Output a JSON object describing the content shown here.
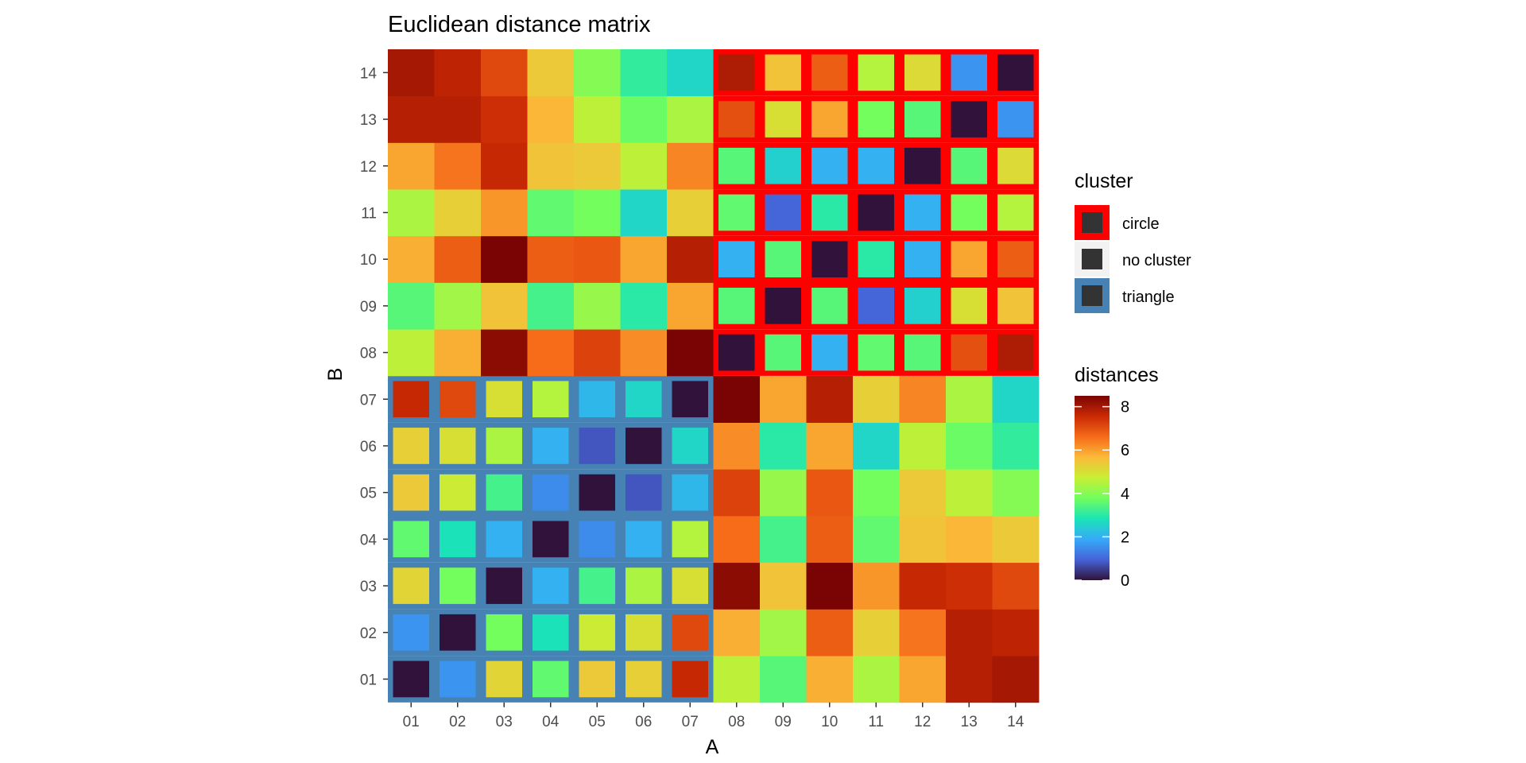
{
  "chart_data": {
    "type": "heatmap",
    "title": "Euclidean distance matrix",
    "xlabel": "A",
    "ylabel": "B",
    "x": [
      "01",
      "02",
      "03",
      "04",
      "05",
      "06",
      "07",
      "08",
      "09",
      "10",
      "11",
      "12",
      "13",
      "14"
    ],
    "y": [
      "01",
      "02",
      "03",
      "04",
      "05",
      "06",
      "07",
      "08",
      "09",
      "10",
      "11",
      "12",
      "13",
      "14"
    ],
    "values_note_rows": "rows ordered by y (01 at bottom), columns ordered by x",
    "values": [
      [
        0.0,
        1.6,
        5.2,
        3.6,
        5.4,
        5.3,
        7.6,
        4.6,
        3.5,
        5.8,
        4.4,
        5.9,
        7.8,
        8.0
      ],
      [
        1.6,
        0.0,
        3.8,
        2.8,
        4.8,
        5.0,
        7.1,
        5.8,
        4.3,
        6.8,
        5.3,
        6.5,
        7.8,
        7.7
      ],
      [
        5.2,
        3.8,
        0.0,
        2.0,
        3.3,
        4.4,
        5.0,
        8.3,
        5.5,
        8.5,
        6.1,
        7.6,
        7.5,
        7.1
      ],
      [
        3.6,
        2.8,
        2.0,
        0.0,
        1.5,
        2.0,
        4.5,
        6.6,
        3.3,
        6.8,
        3.6,
        5.5,
        5.7,
        5.4
      ],
      [
        5.4,
        4.8,
        3.3,
        1.5,
        0.0,
        0.8,
        2.1,
        7.2,
        4.2,
        6.9,
        3.8,
        5.4,
        4.6,
        4.0
      ],
      [
        5.3,
        5.0,
        4.4,
        2.0,
        0.8,
        0.0,
        2.6,
        6.2,
        3.0,
        5.9,
        2.6,
        4.6,
        3.7,
        3.1
      ],
      [
        7.6,
        7.1,
        5.0,
        4.5,
        2.1,
        2.6,
        0.0,
        8.5,
        5.9,
        7.8,
        5.3,
        6.3,
        4.4,
        2.6
      ],
      [
        4.6,
        5.8,
        8.3,
        6.6,
        7.2,
        6.2,
        8.5,
        0.0,
        3.5,
        2.0,
        3.6,
        3.5,
        7.0,
        7.9
      ],
      [
        3.5,
        4.3,
        5.5,
        3.3,
        4.2,
        3.0,
        5.9,
        3.5,
        0.0,
        3.5,
        1.0,
        2.5,
        5.0,
        5.5
      ],
      [
        5.8,
        6.8,
        8.5,
        6.8,
        6.9,
        5.9,
        7.8,
        2.0,
        3.5,
        0.0,
        3.0,
        2.0,
        5.9,
        6.8
      ],
      [
        4.4,
        5.3,
        6.1,
        3.6,
        3.8,
        2.6,
        5.3,
        3.6,
        1.0,
        3.0,
        0.0,
        2.0,
        3.8,
        4.5
      ],
      [
        5.9,
        6.5,
        7.6,
        5.5,
        5.4,
        4.6,
        6.3,
        3.5,
        2.5,
        2.0,
        2.0,
        0.0,
        3.5,
        5.1
      ],
      [
        7.8,
        7.8,
        7.5,
        5.7,
        4.6,
        3.7,
        4.4,
        7.0,
        5.0,
        5.9,
        3.8,
        3.5,
        0.0,
        1.6
      ],
      [
        8.0,
        7.7,
        7.1,
        5.4,
        4.0,
        3.1,
        2.6,
        7.9,
        5.5,
        6.8,
        4.5,
        5.1,
        1.6,
        0.0
      ]
    ],
    "clusters": {
      "circle": [
        "08",
        "09",
        "10",
        "11",
        "12",
        "13",
        "14"
      ],
      "triangle": [
        "01",
        "02",
        "03",
        "04",
        "05",
        "06",
        "07"
      ]
    },
    "cluster_colors": {
      "circle": "#ff0000",
      "no cluster": "#f2f2f2",
      "triangle": "#4682b4"
    },
    "legend_cluster": {
      "title": "cluster",
      "items": [
        "circle",
        "no cluster",
        "triangle"
      ]
    },
    "legend_distances": {
      "title": "distances",
      "ticks": [
        0,
        2,
        4,
        6,
        8
      ]
    },
    "colorbar_range": [
      0,
      8.5
    ],
    "legend_position": "right",
    "grid": false,
    "palette": [
      "#30123b",
      "#4662d7",
      "#36aaf9",
      "#1ae4b6",
      "#72fe5e",
      "#c8ef34",
      "#faba39",
      "#f66b19",
      "#ca2a04",
      "#7a0403"
    ]
  }
}
